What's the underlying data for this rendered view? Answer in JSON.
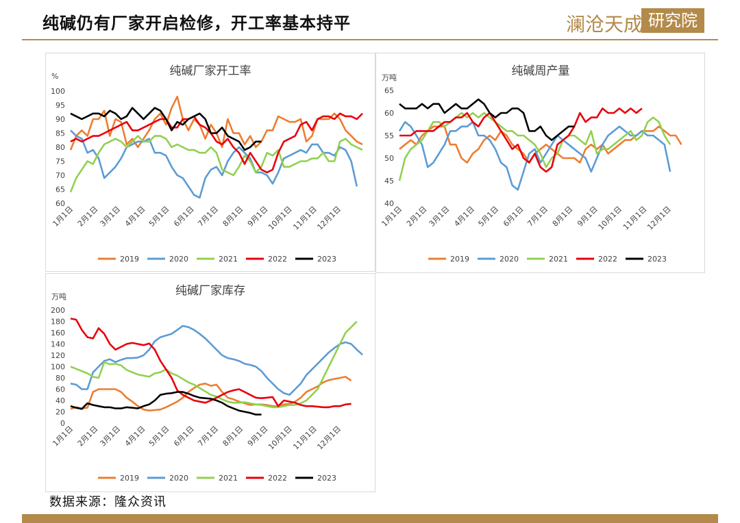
{
  "page": {
    "title": "纯碱仍有厂家开启检修，开工率基本持平",
    "logo_text": "澜沧天成",
    "logo_box_text": "研究院",
    "source": "数据来源：隆众资讯"
  },
  "colors": {
    "2019": "#ED7D31",
    "2020": "#5B9BD5",
    "2021": "#92D050",
    "2022": "#E8000B",
    "2023": "#000000",
    "accent": "#B38A4A"
  },
  "chart_data": [
    {
      "type": "line",
      "title": "纯碱厂家开工率",
      "unit": "%",
      "ylim": [
        60,
        100
      ],
      "yticks": [
        60,
        65,
        70,
        75,
        80,
        85,
        90,
        95,
        100
      ],
      "xticks": [
        "1月1日",
        "2月1日",
        "3月1日",
        "4月1日",
        "5月1日",
        "6月1日",
        "7月1日",
        "8月1日",
        "9月1日",
        "10月1日",
        "11月1日",
        "12月1日"
      ],
      "xlim": [
        1,
        53
      ],
      "grid": false,
      "legend": "bottom",
      "series": [
        {
          "name": "2019",
          "values": [
            79,
            84,
            86,
            84,
            90,
            90,
            93,
            84,
            90,
            89,
            81,
            83,
            80,
            83,
            86,
            90,
            92,
            88,
            94,
            98,
            90,
            86,
            90,
            88,
            83,
            88,
            85,
            80,
            90,
            85,
            85,
            81,
            84,
            80,
            82,
            86,
            86,
            91,
            90,
            89,
            89,
            90,
            82,
            84,
            90,
            90,
            90,
            92,
            90,
            86,
            84,
            82,
            81
          ]
        },
        {
          "name": "2020",
          "values": [
            86,
            84,
            83,
            78,
            79,
            76,
            69,
            71,
            73,
            76,
            80,
            81,
            82,
            82,
            83,
            78,
            78,
            77,
            73,
            70,
            69,
            66,
            63,
            62,
            69,
            72,
            73,
            70,
            75,
            78,
            80,
            78,
            76,
            71,
            71,
            70,
            67,
            71,
            76,
            77,
            78,
            79,
            78,
            81,
            81,
            78,
            78,
            77,
            80,
            79,
            75,
            66
          ]
        },
        {
          "name": "2021",
          "values": [
            64,
            69,
            72,
            75,
            74,
            78,
            81,
            82,
            83,
            82,
            80,
            82,
            84,
            82,
            82,
            84,
            84,
            83,
            80,
            81,
            80,
            79,
            79,
            78,
            78,
            80,
            78,
            72,
            71,
            70,
            73,
            77,
            75,
            71,
            73,
            78,
            77,
            79,
            73,
            73,
            74,
            75,
            75,
            76,
            76,
            78,
            75,
            75,
            82,
            83,
            81,
            80,
            79
          ]
        },
        {
          "name": "2022",
          "values": [
            82,
            83,
            82,
            83,
            84,
            84,
            85,
            86,
            87,
            88,
            89,
            86,
            86,
            87,
            88,
            89,
            90,
            90,
            87,
            87,
            90,
            90,
            91,
            88,
            87,
            85,
            82,
            81,
            83,
            80,
            78,
            74,
            78,
            75,
            72,
            71,
            72,
            78,
            82,
            83,
            84,
            88,
            89,
            86,
            90,
            91,
            91,
            90,
            92,
            91,
            91,
            90,
            92
          ]
        },
        {
          "name": "2023",
          "values": [
            92,
            91,
            90,
            91,
            92,
            92,
            91,
            93,
            92,
            90,
            91,
            94,
            92,
            90,
            92,
            94,
            93,
            90,
            86,
            89,
            88,
            90,
            91,
            92,
            90,
            85,
            85,
            87,
            84,
            83,
            82,
            79,
            80,
            82,
            82
          ]
        }
      ]
    },
    {
      "type": "line",
      "title": "纯碱周产量",
      "unit": "万吨",
      "ylim": [
        40,
        65
      ],
      "yticks": [
        40,
        45,
        50,
        55,
        60,
        65
      ],
      "xticks": [
        "1月1日",
        "2月1日",
        "3月1日",
        "4月1日",
        "5月1日",
        "6月1日",
        "7月1日",
        "8月1日",
        "9月1日",
        "10月1日",
        "11月1日",
        "12月1日"
      ],
      "xlim": [
        1,
        53
      ],
      "grid": false,
      "legend": "bottom",
      "series": [
        {
          "name": "2019",
          "values": [
            52,
            53,
            54,
            53,
            55,
            56,
            57,
            57,
            57,
            53,
            53,
            50,
            49,
            51,
            52,
            54,
            55,
            54,
            56,
            55,
            53,
            52,
            51,
            49,
            51,
            52,
            53,
            52,
            51,
            50,
            50,
            50,
            49,
            52,
            53,
            52,
            53,
            51,
            52,
            53,
            54,
            54,
            55,
            56,
            56,
            56,
            57,
            56,
            55,
            55,
            53
          ]
        },
        {
          "name": "2020",
          "values": [
            56,
            58,
            57,
            55,
            53,
            48,
            49,
            51,
            53,
            56,
            56,
            57,
            57,
            58,
            55,
            55,
            54,
            52,
            49,
            48,
            44,
            43,
            47,
            51,
            52,
            49,
            51,
            53,
            55,
            54,
            53,
            52,
            51,
            50,
            47,
            50,
            53,
            55,
            56,
            57,
            56,
            55,
            55,
            56,
            55,
            55,
            54,
            53,
            47
          ]
        },
        {
          "name": "2021",
          "values": [
            45,
            50,
            52,
            53,
            54,
            56,
            58,
            58,
            57,
            58,
            59,
            60,
            59,
            60,
            59,
            60,
            59,
            58,
            57,
            56,
            56,
            55,
            55,
            54,
            53,
            51,
            48,
            50,
            51,
            54,
            55,
            55,
            54,
            53,
            56,
            51,
            52,
            52,
            53,
            54,
            55,
            56,
            54,
            55,
            58,
            59,
            58,
            55,
            53
          ]
        },
        {
          "name": "2022",
          "values": [
            55,
            55,
            55,
            56,
            56,
            56,
            56,
            57,
            58,
            58,
            59,
            59,
            60,
            58,
            57,
            59,
            60,
            58,
            56,
            54,
            52,
            53,
            50,
            49,
            51,
            48,
            47,
            48,
            53,
            54,
            55,
            57,
            60,
            58,
            59,
            59,
            61,
            60,
            60,
            61,
            60,
            61,
            60,
            61
          ]
        },
        {
          "name": "2023",
          "values": [
            62,
            61,
            61,
            61,
            62,
            61,
            62,
            62,
            60,
            61,
            62,
            61,
            61,
            62,
            63,
            62,
            60,
            59,
            60,
            60,
            61,
            61,
            60,
            56,
            56,
            57,
            55,
            54,
            55,
            56,
            57,
            57
          ]
        }
      ]
    },
    {
      "type": "line",
      "title": "纯碱厂家库存",
      "unit": "万吨",
      "ylim": [
        0,
        200
      ],
      "yticks": [
        0,
        20,
        40,
        60,
        80,
        100,
        120,
        140,
        160,
        180,
        200
      ],
      "xticks": [
        "1月1日",
        "2月1日",
        "3月1日",
        "4月1日",
        "5月1日",
        "6月1日",
        "7月1日",
        "8月1日",
        "9月1日",
        "10月1日",
        "11月1日",
        "12月1日"
      ],
      "xlim": [
        1,
        53
      ],
      "grid": false,
      "legend": "bottom",
      "series": [
        {
          "name": "2019",
          "values": [
            25,
            28,
            26,
            27,
            55,
            60,
            60,
            60,
            60,
            55,
            45,
            38,
            30,
            24,
            22,
            23,
            24,
            28,
            33,
            38,
            45,
            55,
            62,
            68,
            70,
            66,
            68,
            55,
            45,
            42,
            38,
            35,
            32,
            33,
            33,
            32,
            30,
            30,
            33,
            34,
            38,
            45,
            55,
            60,
            65,
            72,
            76,
            78,
            80,
            82,
            75
          ]
        },
        {
          "name": "2020",
          "values": [
            70,
            68,
            60,
            60,
            90,
            100,
            110,
            113,
            108,
            112,
            115,
            115,
            116,
            120,
            130,
            145,
            152,
            155,
            158,
            165,
            172,
            170,
            165,
            158,
            150,
            140,
            130,
            120,
            115,
            113,
            110,
            105,
            103,
            100,
            92,
            80,
            70,
            60,
            53,
            50,
            60,
            70,
            85,
            95,
            105,
            115,
            125,
            133,
            140,
            143,
            140,
            130,
            121
          ]
        },
        {
          "name": "2021",
          "values": [
            100,
            96,
            92,
            88,
            82,
            80,
            108,
            104,
            105,
            102,
            94,
            90,
            86,
            84,
            82,
            88,
            90,
            95,
            88,
            84,
            78,
            72,
            68,
            62,
            56,
            50,
            47,
            42,
            38,
            36,
            36,
            37,
            35,
            33,
            32,
            30,
            28,
            28,
            30,
            32,
            32,
            35,
            40,
            50,
            60,
            80,
            100,
            120,
            140,
            160,
            170,
            180
          ]
        },
        {
          "name": "2022",
          "values": [
            185,
            183,
            165,
            152,
            150,
            168,
            158,
            140,
            130,
            135,
            140,
            142,
            140,
            138,
            141,
            130,
            110,
            95,
            80,
            58,
            50,
            45,
            40,
            38,
            36,
            40,
            45,
            50,
            55,
            58,
            60,
            55,
            50,
            45,
            44,
            45,
            46,
            30,
            40,
            38,
            36,
            32,
            30,
            30,
            29,
            28,
            28,
            30,
            30,
            33,
            34
          ]
        },
        {
          "name": "2023",
          "values": [
            30,
            27,
            25,
            35,
            32,
            30,
            28,
            28,
            26,
            26,
            28,
            27,
            26,
            30,
            33,
            40,
            50,
            52,
            53,
            55,
            55,
            52,
            48,
            45,
            44,
            43,
            40,
            36,
            30,
            26,
            22,
            20,
            18,
            15,
            15
          ]
        }
      ]
    }
  ]
}
